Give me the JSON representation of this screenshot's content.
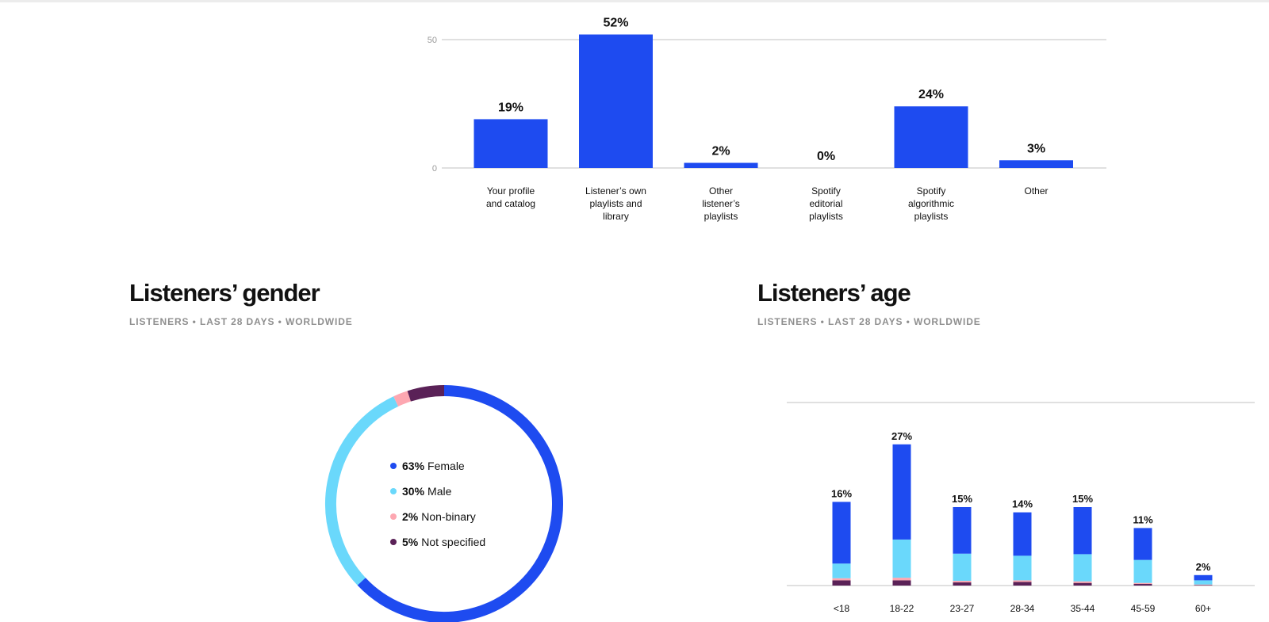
{
  "sections": {
    "gender": {
      "title": "Listeners’ gender",
      "subtitle": "LISTENERS • LAST 28 DAYS • WORLDWIDE"
    },
    "age": {
      "title": "Listeners’ age",
      "subtitle": "LISTENERS • LAST 28 DAYS • WORLDWIDE"
    }
  },
  "chart_data": [
    {
      "type": "bar",
      "title": "",
      "xlabel": "",
      "ylabel": "",
      "y_ticks": [
        0,
        50
      ],
      "ylim": [
        0,
        50
      ],
      "grid": true,
      "bar_color": "#1e4bf0",
      "categories": [
        "Your profile and catalog",
        "Listener’s own playlists and library",
        "Other listener’s playlists",
        "Spotify editorial playlists",
        "Spotify algorithmic playlists",
        "Other"
      ],
      "values": [
        19,
        52,
        2,
        0,
        24,
        3
      ],
      "data_labels": [
        "19%",
        "52%",
        "2%",
        "0%",
        "24%",
        "3%"
      ]
    },
    {
      "type": "pie",
      "style": "donut",
      "title": "",
      "slices": [
        {
          "label": "Female",
          "value": 63,
          "display": "63%",
          "color": "#1e4bf0"
        },
        {
          "label": "Male",
          "value": 30,
          "display": "30%",
          "color": "#6ad8fb"
        },
        {
          "label": "Non-binary",
          "value": 2,
          "display": "2%",
          "color": "#fda7b1"
        },
        {
          "label": "Not specified",
          "value": 5,
          "display": "5%",
          "color": "#5a2157"
        }
      ]
    },
    {
      "type": "bar",
      "stacked": true,
      "title": "",
      "xlabel": "",
      "ylabel": "",
      "ylim": [
        0,
        35
      ],
      "grid": true,
      "categories": [
        "<18",
        "18-22",
        "23-27",
        "28-34",
        "35-44",
        "45-59",
        "60+"
      ],
      "totals": [
        16,
        27,
        15,
        14,
        15,
        11,
        2
      ],
      "total_labels": [
        "16%",
        "27%",
        "15%",
        "14%",
        "15%",
        "11%",
        "2%"
      ],
      "series": [
        {
          "color": "#5a2157",
          "values": [
            1.0,
            1.0,
            0.6,
            0.7,
            0.5,
            0.3,
            0.1
          ]
        },
        {
          "color": "#fda7b1",
          "values": [
            0.4,
            0.5,
            0.3,
            0.3,
            0.3,
            0.2,
            0.1
          ]
        },
        {
          "color": "#6ad8fb",
          "values": [
            2.8,
            7.3,
            5.2,
            4.7,
            5.2,
            4.4,
            0.8
          ]
        },
        {
          "color": "#1e4bf0",
          "values": [
            11.8,
            18.2,
            8.9,
            8.3,
            9.0,
            6.1,
            1.0
          ]
        }
      ]
    }
  ]
}
